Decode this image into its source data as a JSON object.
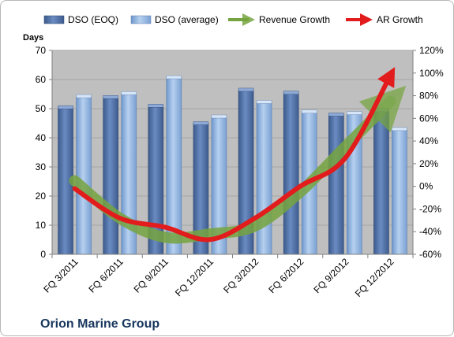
{
  "chart_data": {
    "type": "bar",
    "title": "Orion Marine Group",
    "ylabel": "Days",
    "categories": [
      "FQ 3/2011",
      "FQ 6/2011",
      "FQ 9/2011",
      "FQ 12/2011",
      "FQ 3/2012",
      "FQ 6/2012",
      "FQ 9/2012",
      "FQ 12/2012"
    ],
    "ylim": [
      0,
      70
    ],
    "y_ticks": [
      0,
      10,
      20,
      30,
      40,
      50,
      60,
      70
    ],
    "y2lim": [
      -60,
      120
    ],
    "y2_ticks": [
      "-60%",
      "-40%",
      "-20%",
      "0%",
      "20%",
      "40%",
      "60%",
      "80%",
      "100%",
      "120%"
    ],
    "y2_tick_values": [
      -60,
      -40,
      -20,
      0,
      20,
      40,
      60,
      80,
      100,
      120
    ],
    "grid": true,
    "legend_position": "top",
    "series": [
      {
        "name": "DSO (EOQ)",
        "type": "bar",
        "axis": "left",
        "color": "#4f6fa6",
        "values": [
          50.5,
          54,
          51,
          45,
          56.5,
          55.5,
          48,
          49.5
        ]
      },
      {
        "name": "DSO (average)",
        "type": "bar",
        "axis": "left",
        "color": "#8db3e2",
        "values": [
          54.3,
          55.3,
          60.8,
          47.3,
          52.3,
          49,
          48.5,
          43
        ]
      },
      {
        "name": "Revenue Growth",
        "type": "line",
        "axis": "right",
        "unit": "%",
        "color": "#76a440",
        "values": [
          5,
          -28,
          -45,
          -42,
          -35,
          -5,
          35,
          75
        ]
      },
      {
        "name": "AR Growth",
        "type": "line",
        "axis": "right",
        "unit": "%",
        "color": "#e21c1c",
        "values": [
          -2,
          -28,
          -36,
          -47,
          -28,
          0,
          25,
          98
        ]
      }
    ]
  },
  "colors": {
    "plot_background": "#bfbfbf",
    "gridline": "#a6a6a6",
    "title_color": "#17365d"
  }
}
